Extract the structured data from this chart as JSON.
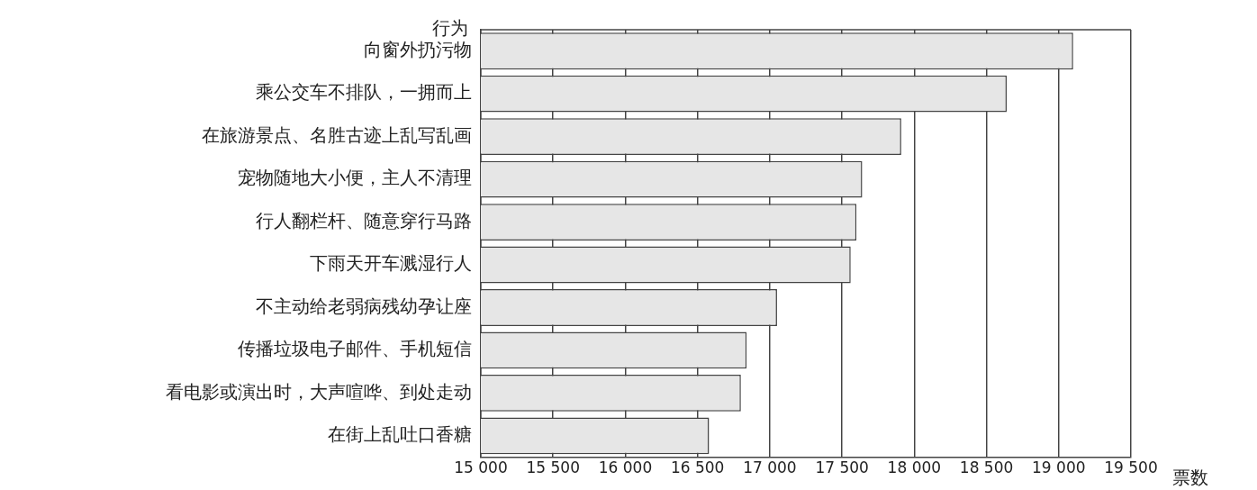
{
  "chart_data": {
    "type": "bar",
    "orientation": "horizontal",
    "ylabel": "行为",
    "xlabel": "票数",
    "categories": [
      "向窗外扔污物",
      "乘公交车不排队，一拥而上",
      "在旅游景点、名胜古迹上乱写乱画",
      "宠物随地大小便，主人不清理",
      "行人翻栏杆、随意穿行马路",
      "下雨天开车溅湿行人",
      "不主动给老弱病残幼孕让座",
      "传播垃圾电子邮件、手机短信",
      "看电影或演出时，大声喧哗、到处走动",
      "在街上乱吐口香糖"
    ],
    "values": [
      19100,
      18640,
      17910,
      17640,
      17600,
      17560,
      17050,
      16840,
      16800,
      16580
    ],
    "color": "#e6e6e6",
    "xlim": [
      15000,
      19500
    ],
    "xticks": [
      {
        "value": 15000,
        "label": "15 000"
      },
      {
        "value": 15500,
        "label": "15 500"
      },
      {
        "value": 16000,
        "label": "16 000"
      },
      {
        "value": 16500,
        "label": "16 500"
      },
      {
        "value": 17000,
        "label": "17 000"
      },
      {
        "value": 17500,
        "label": "17 500"
      },
      {
        "value": 18000,
        "label": "18 000"
      },
      {
        "value": 18500,
        "label": "18 500"
      },
      {
        "value": 19000,
        "label": "19 000"
      },
      {
        "value": 19500,
        "label": "19 500"
      }
    ],
    "grid": "x",
    "legend": false
  }
}
